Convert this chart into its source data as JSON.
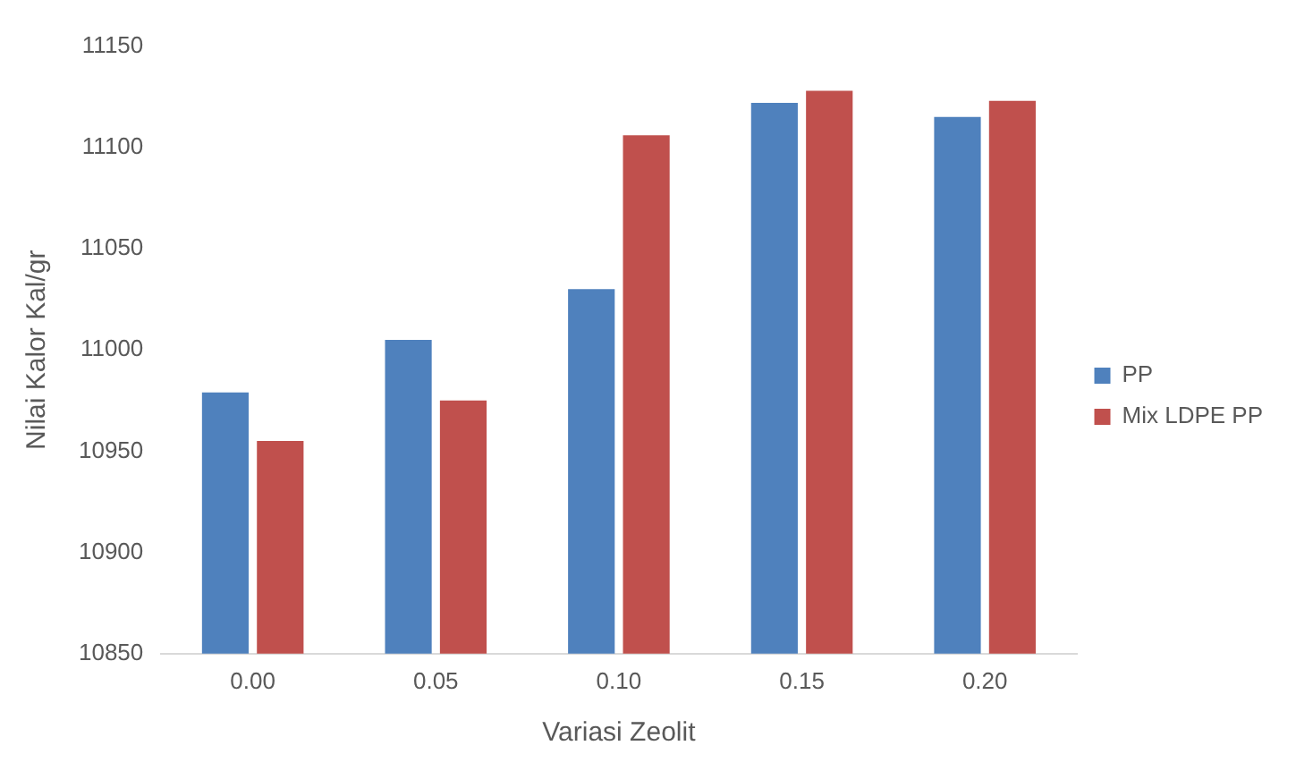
{
  "chart_data": {
    "type": "bar",
    "xlabel": "Variasi Zeolit",
    "ylabel": "Nilai Kalor Kal/gr",
    "categories": [
      "0.00",
      "0.05",
      "0.10",
      "0.15",
      "0.20"
    ],
    "series": [
      {
        "name": "PP",
        "color": "#4f81bd",
        "values": [
          10979,
          11005,
          11030,
          11122,
          11115
        ]
      },
      {
        "name": "Mix LDPE PP",
        "color": "#c0504d",
        "values": [
          10955,
          10975,
          11106,
          11128,
          11123
        ]
      }
    ],
    "ylim": [
      10850,
      11150
    ],
    "yticks": [
      10850,
      10900,
      10950,
      11000,
      11050,
      11100,
      11150
    ],
    "grid": false,
    "legend": "right"
  }
}
